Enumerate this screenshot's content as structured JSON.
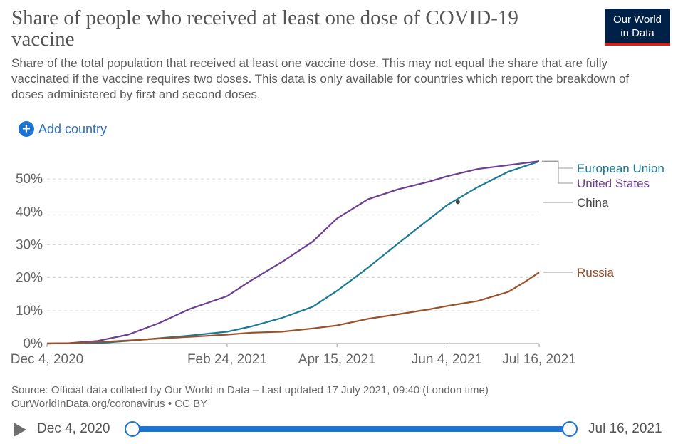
{
  "header": {
    "title": "Share of people who received at least one dose of COVID-19 vaccine",
    "subtitle": "Share of the total population that received at least one vaccine dose. This may not equal the share that are fully vaccinated if the vaccine requires two doses. This data is only available for countries which report the breakdown of doses administered by first and second doses.",
    "logo_line1": "Our World",
    "logo_line2": "in Data"
  },
  "controls": {
    "add_country_label": "Add country",
    "add_icon": "plus-circle-icon"
  },
  "chart_data": {
    "type": "line",
    "title": "Share of people who received at least one dose of COVID-19 vaccine",
    "xlabel": "",
    "ylabel": "",
    "x_type": "date",
    "xlim": [
      "2020-12-04",
      "2021-07-16"
    ],
    "ylim": [
      0,
      55
    ],
    "y_ticks": [
      0,
      10,
      20,
      30,
      40,
      50
    ],
    "y_tick_labels": [
      "0%",
      "10%",
      "20%",
      "30%",
      "40%",
      "50%"
    ],
    "x_ticks": [
      "2020-12-04",
      "2021-02-24",
      "2021-04-15",
      "2021-06-04",
      "2021-07-16"
    ],
    "x_tick_labels": [
      "Dec 4, 2020",
      "Feb 24, 2021",
      "Apr 15, 2021",
      "Jun 4, 2021",
      "Jul 16, 2021"
    ],
    "grid": "horizontal-dashed",
    "legend": "right-end-labels",
    "series": [
      {
        "name": "European Union",
        "color": "#1a7a96",
        "x": [
          "2020-12-04",
          "2020-12-27",
          "2021-01-10",
          "2021-01-24",
          "2021-02-07",
          "2021-02-24",
          "2021-03-07",
          "2021-03-21",
          "2021-04-04",
          "2021-04-15",
          "2021-04-29",
          "2021-05-13",
          "2021-05-27",
          "2021-06-04",
          "2021-06-18",
          "2021-07-02",
          "2021-07-16"
        ],
        "values": [
          0,
          0.1,
          0.8,
          1.6,
          2.4,
          3.6,
          5.2,
          7.8,
          11.2,
          16.0,
          23.0,
          30.5,
          37.8,
          42.0,
          47.5,
          52.2,
          55.3
        ]
      },
      {
        "name": "United States",
        "color": "#6d3e91",
        "x": [
          "2020-12-04",
          "2020-12-14",
          "2020-12-27",
          "2021-01-10",
          "2021-01-24",
          "2021-02-07",
          "2021-02-24",
          "2021-03-07",
          "2021-03-21",
          "2021-04-04",
          "2021-04-15",
          "2021-04-29",
          "2021-05-13",
          "2021-05-27",
          "2021-06-04",
          "2021-06-18",
          "2021-07-02",
          "2021-07-16"
        ],
        "values": [
          0,
          0.1,
          0.8,
          2.7,
          6.2,
          10.5,
          14.4,
          19.2,
          24.8,
          31.0,
          38.0,
          43.8,
          46.9,
          49.2,
          50.8,
          53.0,
          54.2,
          55.4
        ]
      },
      {
        "name": "China",
        "color": "#444444",
        "x": [
          "2021-06-09"
        ],
        "values": [
          43.0
        ]
      },
      {
        "name": "Russia",
        "color": "#9a5129",
        "x": [
          "2020-12-04",
          "2020-12-15",
          "2020-12-29",
          "2021-01-12",
          "2021-01-26",
          "2021-02-09",
          "2021-02-24",
          "2021-03-07",
          "2021-03-21",
          "2021-04-04",
          "2021-04-15",
          "2021-04-29",
          "2021-05-13",
          "2021-05-27",
          "2021-06-04",
          "2021-06-18",
          "2021-07-02",
          "2021-07-09",
          "2021-07-16"
        ],
        "values": [
          0,
          0.1,
          0.5,
          1.0,
          1.6,
          2.1,
          2.7,
          3.3,
          3.6,
          4.6,
          5.5,
          7.5,
          8.9,
          10.4,
          11.4,
          12.9,
          15.7,
          18.5,
          21.6
        ]
      }
    ]
  },
  "footer": {
    "source_line1": "Source: Official data collated by Our World in Data – Last updated 17 July 2021, 09:40 (London time)",
    "source_line2": "OurWorldInData.org/coronavirus • CC BY"
  },
  "timeline": {
    "start_label": "Dec 4, 2020",
    "end_label": "Jul 16, 2021",
    "play_icon": "play-icon"
  }
}
